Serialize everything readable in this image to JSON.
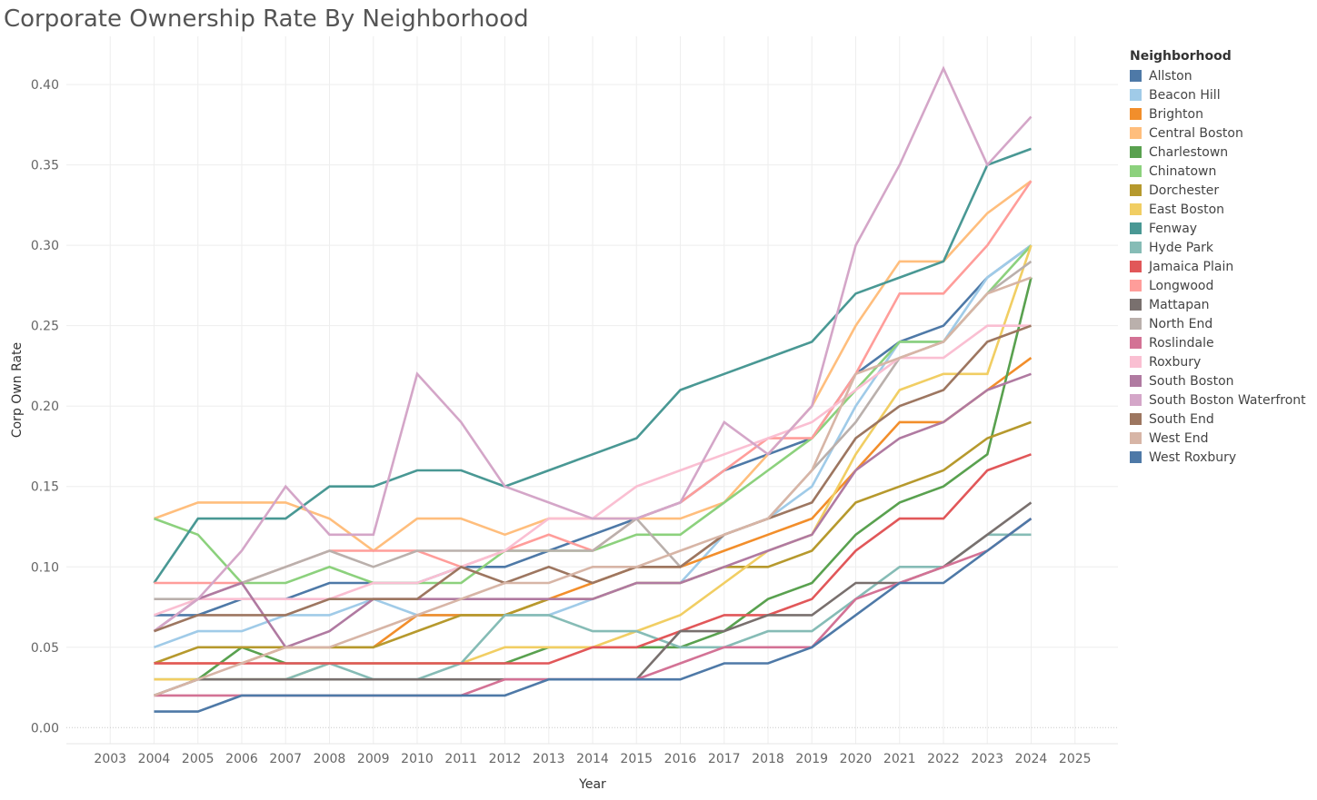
{
  "title": "Corporate Ownership Rate By Neighborhood",
  "chart_data": {
    "type": "line",
    "title": "Corporate Ownership Rate By Neighborhood",
    "xlabel": "Year",
    "ylabel": "Corp Own Rate",
    "xlim": [
      2002,
      2026
    ],
    "ylim": [
      -0.01,
      0.43
    ],
    "x_ticks": [
      2003,
      2004,
      2005,
      2006,
      2007,
      2008,
      2009,
      2010,
      2011,
      2012,
      2013,
      2014,
      2015,
      2016,
      2017,
      2018,
      2019,
      2020,
      2021,
      2022,
      2023,
      2024,
      2025
    ],
    "y_ticks": [
      0.0,
      0.05,
      0.1,
      0.15,
      0.2,
      0.25,
      0.3,
      0.35,
      0.4
    ],
    "y_tick_labels": [
      "0.00",
      "0.05",
      "0.10",
      "0.15",
      "0.20",
      "0.25",
      "0.30",
      "0.35",
      "0.40"
    ],
    "grid": true,
    "legend_title": "Neighborhood",
    "legend_position": "right",
    "x": [
      2004,
      2005,
      2006,
      2007,
      2008,
      2009,
      2010,
      2011,
      2012,
      2013,
      2014,
      2015,
      2016,
      2017,
      2018,
      2019,
      2020,
      2021,
      2022,
      2023,
      2024
    ],
    "series": [
      {
        "name": "Allston",
        "color": "#4e79a7",
        "values": [
          0.07,
          0.07,
          0.08,
          0.08,
          0.09,
          0.09,
          0.09,
          0.1,
          0.1,
          0.11,
          0.12,
          0.13,
          0.14,
          0.16,
          0.17,
          0.18,
          0.22,
          0.24,
          0.25,
          0.28,
          0.3
        ]
      },
      {
        "name": "Beacon Hill",
        "color": "#a0cbe8",
        "values": [
          0.05,
          0.06,
          0.06,
          0.07,
          0.07,
          0.08,
          0.07,
          0.07,
          0.07,
          0.07,
          0.08,
          0.09,
          0.09,
          0.12,
          0.13,
          0.15,
          0.2,
          0.24,
          0.24,
          0.28,
          0.3
        ]
      },
      {
        "name": "Brighton",
        "color": "#f28e2b",
        "values": [
          0.04,
          0.04,
          0.04,
          0.05,
          0.05,
          0.05,
          0.07,
          0.07,
          0.07,
          0.08,
          0.09,
          0.1,
          0.1,
          0.11,
          0.12,
          0.13,
          0.16,
          0.19,
          0.19,
          0.21,
          0.23
        ]
      },
      {
        "name": "Central Boston",
        "color": "#ffbe7d",
        "values": [
          0.13,
          0.14,
          0.14,
          0.14,
          0.13,
          0.11,
          0.13,
          0.13,
          0.12,
          0.13,
          0.13,
          0.13,
          0.13,
          0.14,
          0.17,
          0.2,
          0.25,
          0.29,
          0.29,
          0.32,
          0.34
        ]
      },
      {
        "name": "Charlestown",
        "color": "#59a14f",
        "values": [
          0.03,
          0.03,
          0.05,
          0.04,
          0.04,
          0.04,
          0.04,
          0.04,
          0.04,
          0.05,
          0.05,
          0.05,
          0.05,
          0.06,
          0.08,
          0.09,
          0.12,
          0.14,
          0.15,
          0.17,
          0.28
        ]
      },
      {
        "name": "Chinatown",
        "color": "#8cd17d",
        "values": [
          0.13,
          0.12,
          0.09,
          0.09,
          0.1,
          0.09,
          0.09,
          0.09,
          0.11,
          0.11,
          0.11,
          0.12,
          0.12,
          0.14,
          0.16,
          0.18,
          0.21,
          0.24,
          0.24,
          0.27,
          0.3
        ]
      },
      {
        "name": "Dorchester",
        "color": "#b6992d",
        "values": [
          0.04,
          0.05,
          0.05,
          0.05,
          0.05,
          0.05,
          0.06,
          0.07,
          0.07,
          0.08,
          0.08,
          0.09,
          0.09,
          0.1,
          0.1,
          0.11,
          0.14,
          0.15,
          0.16,
          0.18,
          0.19
        ]
      },
      {
        "name": "East Boston",
        "color": "#f1ce63",
        "values": [
          0.03,
          0.03,
          0.03,
          0.03,
          0.04,
          0.04,
          0.04,
          0.04,
          0.05,
          0.05,
          0.05,
          0.06,
          0.07,
          0.09,
          0.11,
          0.12,
          0.17,
          0.21,
          0.22,
          0.22,
          0.3
        ]
      },
      {
        "name": "Fenway",
        "color": "#499894",
        "values": [
          0.09,
          0.13,
          0.13,
          0.13,
          0.15,
          0.15,
          0.16,
          0.16,
          0.15,
          0.16,
          0.17,
          0.18,
          0.21,
          0.22,
          0.23,
          0.24,
          0.27,
          0.28,
          0.29,
          0.35,
          0.36
        ]
      },
      {
        "name": "Hyde Park",
        "color": "#86bcb6",
        "values": [
          0.02,
          0.03,
          0.03,
          0.03,
          0.04,
          0.03,
          0.03,
          0.04,
          0.07,
          0.07,
          0.06,
          0.06,
          0.05,
          0.05,
          0.06,
          0.06,
          0.08,
          0.1,
          0.1,
          0.12,
          0.12
        ]
      },
      {
        "name": "Jamaica Plain",
        "color": "#e15759",
        "values": [
          0.04,
          0.04,
          0.04,
          0.04,
          0.04,
          0.04,
          0.04,
          0.04,
          0.04,
          0.04,
          0.05,
          0.05,
          0.06,
          0.07,
          0.07,
          0.08,
          0.11,
          0.13,
          0.13,
          0.16,
          0.17
        ]
      },
      {
        "name": "Longwood",
        "color": "#ff9d9a",
        "values": [
          0.09,
          0.09,
          0.09,
          0.1,
          0.11,
          0.11,
          0.11,
          0.1,
          0.11,
          0.12,
          0.11,
          0.13,
          0.14,
          0.16,
          0.18,
          0.18,
          0.22,
          0.27,
          0.27,
          0.3,
          0.34
        ]
      },
      {
        "name": "Mattapan",
        "color": "#79706e",
        "values": [
          0.02,
          0.03,
          0.03,
          0.03,
          0.03,
          0.03,
          0.03,
          0.03,
          0.03,
          0.03,
          0.03,
          0.03,
          0.06,
          0.06,
          0.07,
          0.07,
          0.09,
          0.09,
          0.1,
          0.12,
          0.14
        ]
      },
      {
        "name": "North End",
        "color": "#bab0ac",
        "values": [
          0.08,
          0.08,
          0.09,
          0.1,
          0.11,
          0.1,
          0.11,
          0.11,
          0.11,
          0.11,
          0.11,
          0.13,
          0.1,
          0.12,
          0.13,
          0.16,
          0.19,
          0.23,
          0.24,
          0.27,
          0.29
        ]
      },
      {
        "name": "Roslindale",
        "color": "#d37295",
        "values": [
          0.02,
          0.02,
          0.02,
          0.02,
          0.02,
          0.02,
          0.02,
          0.02,
          0.03,
          0.03,
          0.03,
          0.03,
          0.04,
          0.05,
          0.05,
          0.05,
          0.08,
          0.09,
          0.1,
          0.11,
          0.13
        ]
      },
      {
        "name": "Roxbury",
        "color": "#fabfd2",
        "values": [
          0.07,
          0.08,
          0.08,
          0.08,
          0.08,
          0.09,
          0.09,
          0.1,
          0.11,
          0.13,
          0.13,
          0.15,
          0.16,
          0.17,
          0.18,
          0.19,
          0.21,
          0.23,
          0.23,
          0.25,
          0.25
        ]
      },
      {
        "name": "South Boston",
        "color": "#b07aa1",
        "values": [
          0.06,
          0.08,
          0.09,
          0.05,
          0.06,
          0.08,
          0.08,
          0.08,
          0.08,
          0.08,
          0.08,
          0.09,
          0.09,
          0.1,
          0.11,
          0.12,
          0.16,
          0.18,
          0.19,
          0.21,
          0.22
        ]
      },
      {
        "name": "South Boston Waterfront",
        "color": "#d4a6c8",
        "values": [
          0.06,
          0.08,
          0.11,
          0.15,
          0.12,
          0.12,
          0.22,
          0.19,
          0.15,
          0.14,
          0.13,
          0.13,
          0.14,
          0.19,
          0.17,
          0.2,
          0.3,
          0.35,
          0.41,
          0.35,
          0.38
        ]
      },
      {
        "name": "South End",
        "color": "#9d7660",
        "values": [
          0.06,
          0.07,
          0.07,
          0.07,
          0.08,
          0.08,
          0.08,
          0.1,
          0.09,
          0.1,
          0.09,
          0.1,
          0.1,
          0.12,
          0.13,
          0.14,
          0.18,
          0.2,
          0.21,
          0.24,
          0.25
        ]
      },
      {
        "name": "West End",
        "color": "#d7b5a6",
        "values": [
          0.02,
          0.03,
          0.04,
          0.05,
          0.05,
          0.06,
          0.07,
          0.08,
          0.09,
          0.09,
          0.1,
          0.1,
          0.11,
          0.12,
          0.13,
          0.16,
          0.22,
          0.23,
          0.24,
          0.27,
          0.28
        ]
      },
      {
        "name": "West Roxbury",
        "color": "#4e79a7",
        "values": [
          0.01,
          0.01,
          0.02,
          0.02,
          0.02,
          0.02,
          0.02,
          0.02,
          0.02,
          0.03,
          0.03,
          0.03,
          0.03,
          0.04,
          0.04,
          0.05,
          0.07,
          0.09,
          0.09,
          0.11,
          0.13
        ]
      }
    ]
  }
}
